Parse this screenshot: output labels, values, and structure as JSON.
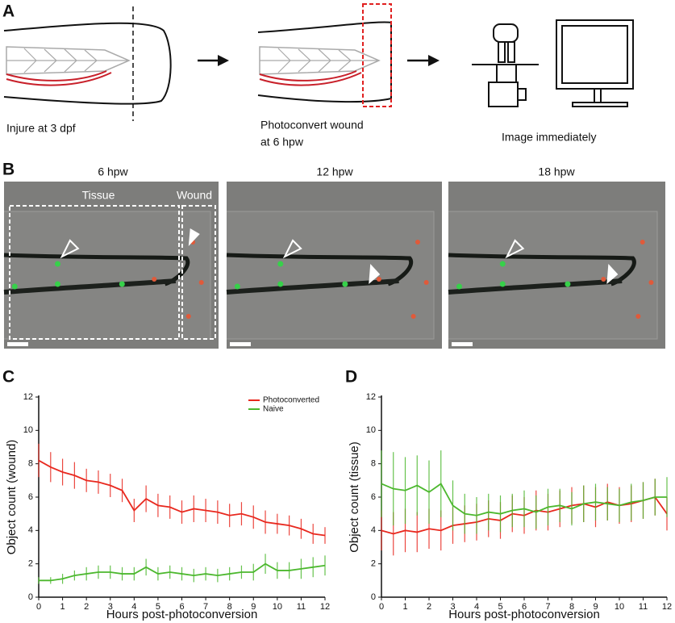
{
  "panel_a": {
    "label": "A",
    "injure": "Injure at 3 dpf",
    "photoconvert": [
      "Photoconvert wound",
      "at 6 hpw"
    ],
    "image": "Image immediately"
  },
  "panel_b": {
    "label": "B",
    "timepoints": [
      "6 hpw",
      "12 hpw",
      "18 hpw"
    ],
    "regions": [
      "Tissue",
      "Wound"
    ]
  },
  "chart_data": [
    {
      "type": "line",
      "panel_label": "C",
      "xlabel": "Hours post-photoconversion",
      "ylabel": "Object count (wound)",
      "xlim": [
        0,
        12
      ],
      "ylim": [
        0,
        12
      ],
      "xticks": [
        0,
        1,
        2,
        3,
        4,
        5,
        6,
        7,
        8,
        9,
        10,
        11,
        12
      ],
      "yticks": [
        0,
        2,
        4,
        6,
        8,
        10,
        12
      ],
      "legend": "upper right",
      "x": [
        0,
        0.5,
        1,
        1.5,
        2,
        2.5,
        3,
        3.5,
        4,
        4.5,
        5,
        5.5,
        6,
        6.5,
        7,
        7.5,
        8,
        8.5,
        9,
        9.5,
        10,
        10.5,
        11,
        11.5,
        12
      ],
      "series": [
        {
          "name": "Photoconverted",
          "color": "#e8281e",
          "values": [
            8.2,
            7.8,
            7.5,
            7.3,
            7.0,
            6.9,
            6.7,
            6.4,
            5.2,
            5.9,
            5.5,
            5.4,
            5.1,
            5.3,
            5.2,
            5.1,
            4.9,
            5.0,
            4.8,
            4.5,
            4.4,
            4.3,
            4.1,
            3.8,
            3.7
          ],
          "errors": [
            1.0,
            0.9,
            0.8,
            0.8,
            0.7,
            0.7,
            0.7,
            0.7,
            0.7,
            0.8,
            0.7,
            0.7,
            0.7,
            0.8,
            0.7,
            0.7,
            0.7,
            0.7,
            0.7,
            0.7,
            0.6,
            0.6,
            0.6,
            0.6,
            0.5
          ]
        },
        {
          "name": "Naive",
          "color": "#4cb82e",
          "values": [
            1.0,
            1.0,
            1.1,
            1.3,
            1.4,
            1.5,
            1.5,
            1.4,
            1.4,
            1.8,
            1.4,
            1.5,
            1.4,
            1.3,
            1.4,
            1.3,
            1.4,
            1.5,
            1.5,
            2.0,
            1.6,
            1.6,
            1.7,
            1.8,
            1.9
          ],
          "errors": [
            0.2,
            0.2,
            0.3,
            0.3,
            0.4,
            0.4,
            0.4,
            0.4,
            0.4,
            0.5,
            0.4,
            0.4,
            0.4,
            0.4,
            0.4,
            0.4,
            0.4,
            0.4,
            0.5,
            0.6,
            0.5,
            0.5,
            0.6,
            0.6,
            0.6
          ]
        }
      ]
    },
    {
      "type": "line",
      "panel_label": "D",
      "xlabel": "Hours post-photoconversion",
      "ylabel": "Object count (tissue)",
      "xlim": [
        0,
        12
      ],
      "ylim": [
        0,
        12
      ],
      "xticks": [
        0,
        1,
        2,
        3,
        4,
        5,
        6,
        7,
        8,
        9,
        10,
        11,
        12
      ],
      "yticks": [
        0,
        2,
        4,
        6,
        8,
        10,
        12
      ],
      "x": [
        0,
        0.5,
        1,
        1.5,
        2,
        2.5,
        3,
        3.5,
        4,
        4.5,
        5,
        5.5,
        6,
        6.5,
        7,
        7.5,
        8,
        8.5,
        9,
        9.5,
        10,
        10.5,
        11,
        11.5,
        12
      ],
      "series": [
        {
          "color": "#e8281e",
          "values": [
            4.0,
            3.8,
            4.0,
            3.9,
            4.1,
            4.0,
            4.3,
            4.4,
            4.5,
            4.7,
            4.6,
            5.0,
            4.9,
            5.2,
            5.1,
            5.3,
            5.5,
            5.6,
            5.4,
            5.7,
            5.5,
            5.6,
            5.8,
            6.0,
            5.0
          ],
          "errors": [
            1.2,
            1.3,
            1.3,
            1.2,
            1.2,
            1.2,
            1.1,
            1.1,
            1.1,
            1.1,
            1.1,
            1.1,
            1.1,
            1.2,
            1.1,
            1.1,
            1.1,
            1.1,
            1.2,
            1.1,
            1.1,
            1.1,
            1.1,
            1.1,
            1.0
          ]
        },
        {
          "color": "#4cb82e",
          "values": [
            6.8,
            6.5,
            6.4,
            6.7,
            6.3,
            6.8,
            5.5,
            5.0,
            4.9,
            5.1,
            5.0,
            5.2,
            5.3,
            5.1,
            5.4,
            5.5,
            5.3,
            5.6,
            5.7,
            5.6,
            5.5,
            5.7,
            5.8,
            6.0,
            6.0
          ],
          "errors": [
            2.0,
            2.2,
            2.0,
            1.8,
            1.9,
            2.0,
            1.5,
            1.2,
            1.1,
            1.1,
            1.1,
            1.0,
            1.1,
            1.0,
            1.1,
            1.0,
            1.0,
            1.1,
            1.1,
            1.0,
            1.0,
            1.1,
            1.1,
            1.1,
            1.2
          ]
        }
      ]
    }
  ]
}
